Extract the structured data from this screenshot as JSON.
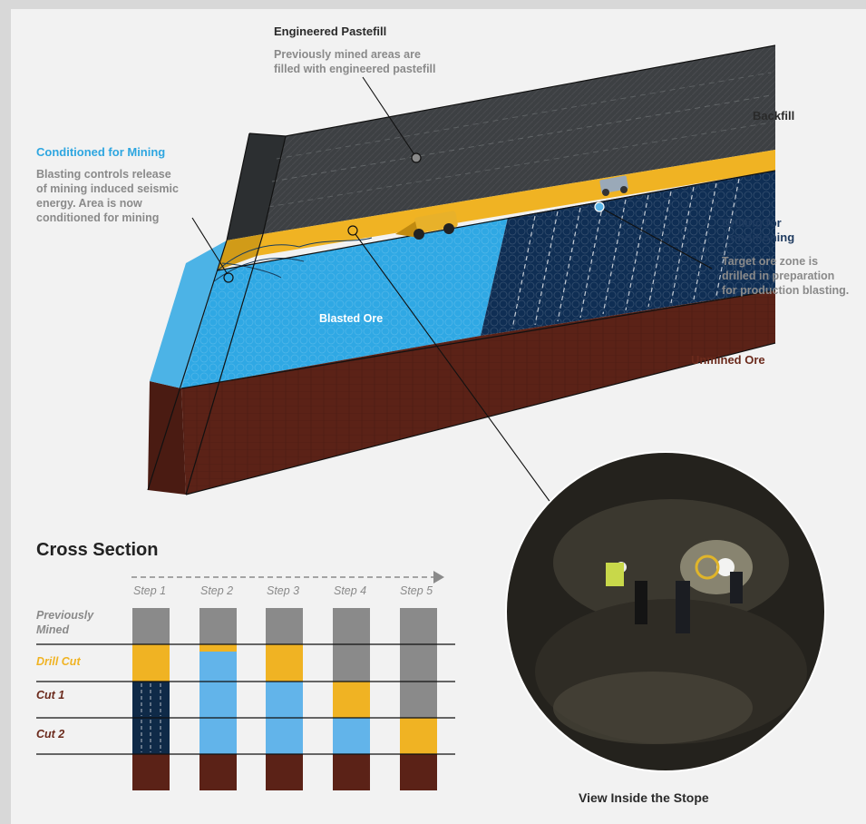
{
  "labels": {
    "engineered_pastefill_title": "Engineered Pastefill",
    "engineered_pastefill_desc_1": "Previously mined areas are",
    "engineered_pastefill_desc_2": "filled with engineered pastefill",
    "backfill": "Backfill",
    "conditioned_title": "Conditioned for Mining",
    "conditioned_desc_1": "Blasting controls release",
    "conditioned_desc_2": "of mining induced seismic",
    "conditioned_desc_3": "energy.  Area is now",
    "conditioned_desc_4": "conditioned for mining",
    "drilling_title_1": "Drilling for",
    "drilling_title_2": "Conditioning",
    "drilling_desc_1": "Target ore zone is",
    "drilling_desc_2": "drilled in preparation",
    "drilling_desc_3": "for production blasting.",
    "blasted_ore": "Blasted Ore",
    "unmined_ore": "Unmined Ore",
    "view_inside": "View Inside the Stope"
  },
  "cross_section": {
    "title": "Cross Section",
    "steps": [
      "Step 1",
      "Step 2",
      "Step 3",
      "Step 4",
      "Step 5"
    ],
    "rows": [
      {
        "label_1": "Previously",
        "label_2": "Mined",
        "color": "#8a8a8a"
      },
      {
        "label_1": "Drill Cut",
        "label_2": "",
        "color": "#f0b323"
      },
      {
        "label_1": "Cut 1",
        "label_2": "",
        "color": "#6b2a1c"
      },
      {
        "label_1": "Cut 2",
        "label_2": "",
        "color": "#6b2a1c"
      }
    ],
    "columns": [
      [
        "gray",
        "yellow",
        "drilled",
        "drilled",
        "brown"
      ],
      [
        "gray",
        "yellowthin",
        "blue",
        "blue",
        "brown"
      ],
      [
        "gray",
        "yellow",
        "blue",
        "blue",
        "brown"
      ],
      [
        "gray",
        "gray",
        "yellow",
        "blue",
        "brown"
      ],
      [
        "gray",
        "gray",
        "gray",
        "yellow",
        "brown"
      ]
    ]
  },
  "colors": {
    "backfill": "#3d4043",
    "pastefill_yellow": "#f0b323",
    "blasted_ore": "#2fa8e4",
    "drilled_ore": "#0f2e54",
    "unmined_ore": "#5b2217",
    "gray": "#8a8a8a",
    "blue": "#62b4ea",
    "cs_navy": "#0f2a48"
  }
}
